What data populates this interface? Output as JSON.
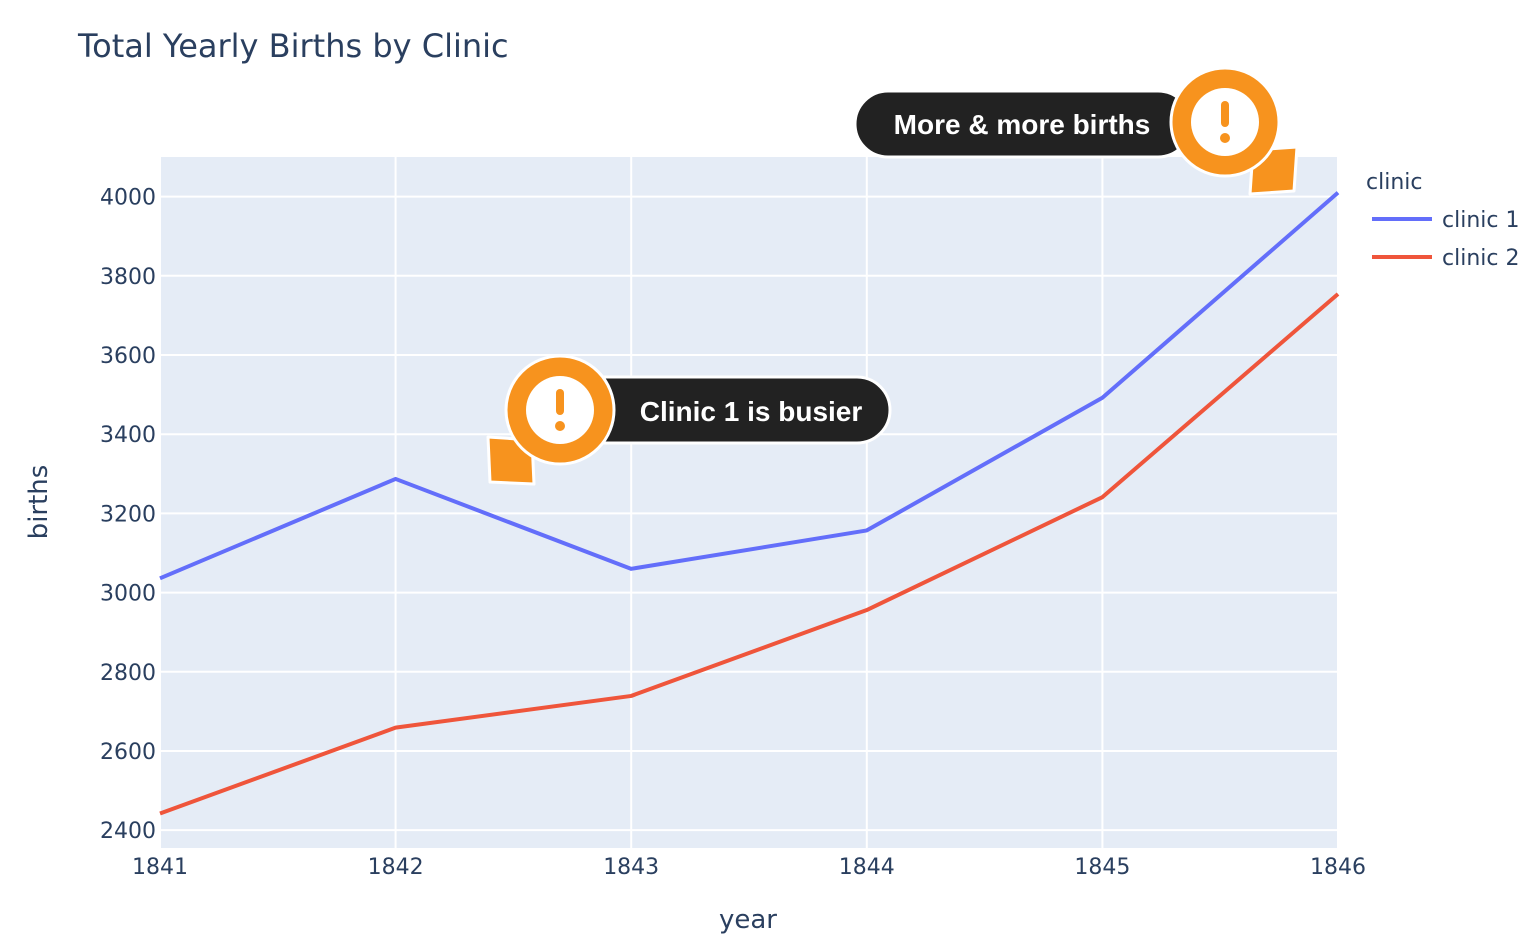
{
  "chart_data": {
    "type": "line",
    "title": "Total Yearly Births by Clinic",
    "xlabel": "year",
    "ylabel": "births",
    "x": [
      1841,
      1842,
      1843,
      1844,
      1845,
      1846
    ],
    "xlim": [
      1841,
      1846
    ],
    "ylim": [
      2355,
      4100
    ],
    "x_ticks": [
      "1841",
      "1842",
      "1843",
      "1844",
      "1845",
      "1846"
    ],
    "y_ticks": [
      2400,
      2600,
      2800,
      3000,
      3200,
      3400,
      3600,
      3800,
      4000
    ],
    "grid": true,
    "legend_title": "clinic",
    "legend_position": "top-right",
    "series": [
      {
        "name": "clinic 1",
        "color": "#636efa",
        "values": [
          3036,
          3287,
          3060,
          3157,
          3492,
          4010
        ]
      },
      {
        "name": "clinic 2",
        "color": "#ef553b",
        "values": [
          2442,
          2659,
          2739,
          2956,
          3241,
          3754
        ]
      }
    ],
    "annotations": [
      {
        "text": "Clinic 1 is busier",
        "icon": "exclamation-icon",
        "accent": "#f7931e"
      },
      {
        "text": "More & more births",
        "icon": "exclamation-icon",
        "accent": "#f7931e"
      }
    ],
    "plot_background": "#e5ecf6",
    "callout_background": "#222222"
  }
}
